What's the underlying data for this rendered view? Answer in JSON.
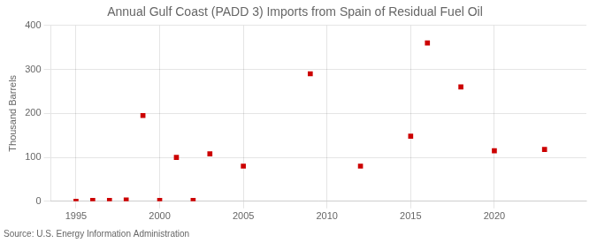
{
  "chart_data": {
    "type": "scatter",
    "title": "Annual Gulf Coast (PADD 3) Imports from Spain of Residual Fuel Oil",
    "ylabel": "Thousand Barrels",
    "annotations": [
      "Source: U.S. Energy Information Administration"
    ],
    "x": [
      1995,
      1996,
      1997,
      1998,
      1999,
      2000,
      2001,
      2002,
      2003,
      2005,
      2009,
      2012,
      2015,
      2016,
      2018,
      2020,
      2023
    ],
    "values": [
      0,
      2,
      2,
      3,
      195,
      2,
      100,
      2,
      108,
      80,
      290,
      80,
      148,
      360,
      260,
      115,
      118
    ],
    "color": "#cc0000",
    "marker": "square",
    "xlim": [
      1993.5,
      2025.5
    ],
    "xticks": [
      1995,
      2000,
      2005,
      2010,
      2015,
      2020
    ],
    "ylim": [
      0,
      400
    ],
    "yticks": [
      0,
      100,
      200,
      300,
      400
    ],
    "grid": true
  }
}
